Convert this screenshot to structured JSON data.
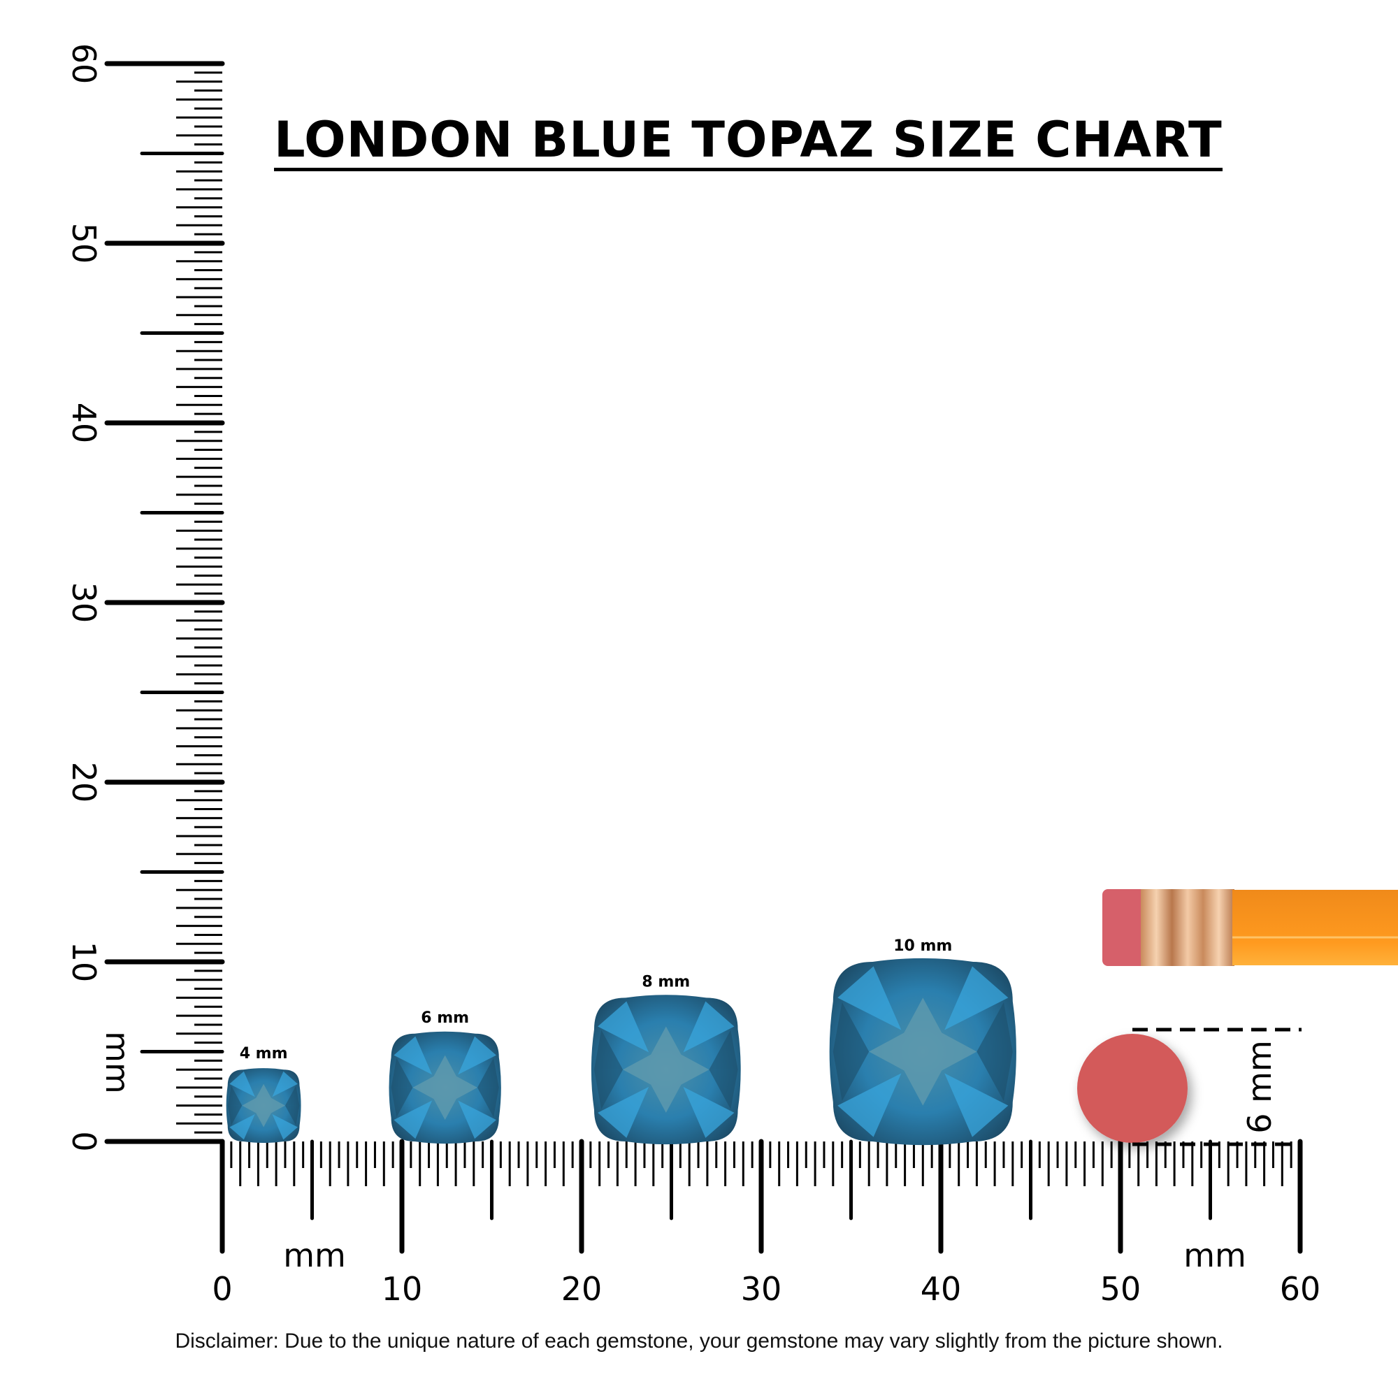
{
  "title": "LONDON BLUE TOPAZ SIZE CHART",
  "disclaimer": "Disclaimer: Due to the unique nature of each gemstone, your gemstone may vary slightly from the picture shown.",
  "ruler": {
    "unit_label": "mm",
    "range_mm": [
      0,
      60
    ],
    "x_labels": [
      "0",
      "10",
      "20",
      "30",
      "40",
      "50",
      "60"
    ],
    "y_labels": [
      "0",
      "10",
      "20",
      "30",
      "40",
      "50",
      "60"
    ]
  },
  "gems": [
    {
      "label": "4 mm",
      "size_mm": 4,
      "center_mm": 2.3
    },
    {
      "label": "6 mm",
      "size_mm": 6,
      "center_mm": 12.4
    },
    {
      "label": "8 mm",
      "size_mm": 8,
      "center_mm": 24.7
    },
    {
      "label": "10 mm",
      "size_mm": 10,
      "center_mm": 39.0
    }
  ],
  "reference": {
    "label": "6 mm",
    "object": "pencil eraser",
    "diameter_mm": 6
  },
  "colors": {
    "gem": "#2a7fae",
    "gem_light": "#3aa6dc",
    "gem_dark": "#1d4e6b",
    "eraser": "#d35a5a",
    "pencil": "#f7941d",
    "ferrule": "#e8b48a"
  }
}
